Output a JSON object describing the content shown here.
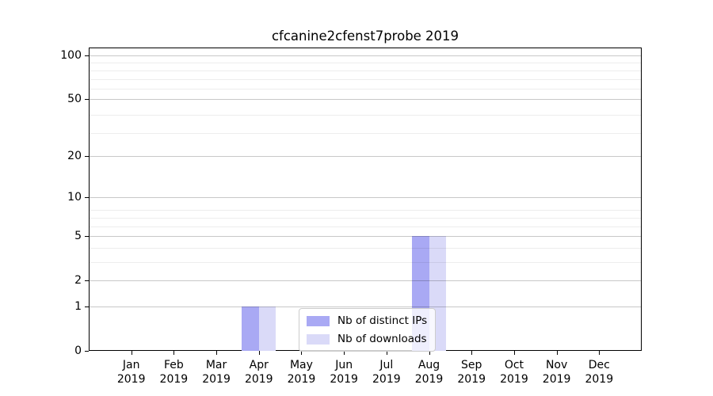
{
  "chart_data": {
    "type": "bar",
    "title": "cfcanine2cfenst7probe 2019",
    "categories": [
      "Jan",
      "Feb",
      "Mar",
      "Apr",
      "May",
      "Jun",
      "Jul",
      "Aug",
      "Sep",
      "Oct",
      "Nov",
      "Dec"
    ],
    "category_year": "2019",
    "series": [
      {
        "name": "Nb of distinct IPs",
        "color": "#a9a9f4",
        "values": [
          0,
          0,
          0,
          1,
          0,
          0,
          0,
          5,
          0,
          0,
          0,
          0
        ]
      },
      {
        "name": "Nb of downloads",
        "color": "#dadaf8",
        "values": [
          0,
          0,
          0,
          1,
          0,
          0,
          0,
          5,
          0,
          0,
          0,
          0
        ]
      }
    ],
    "xlabel": "",
    "ylabel": "",
    "y_ticks": [
      0,
      1,
      2,
      5,
      10,
      20,
      50,
      100
    ],
    "y_scale": "log10(1+v)",
    "ylim": [
      0,
      113
    ],
    "grid": "horizontal",
    "y_minor_grid_1plusv": [
      4,
      5,
      7,
      8,
      9,
      30,
      40,
      60,
      70,
      80,
      90
    ],
    "legend_position": "lower center"
  }
}
